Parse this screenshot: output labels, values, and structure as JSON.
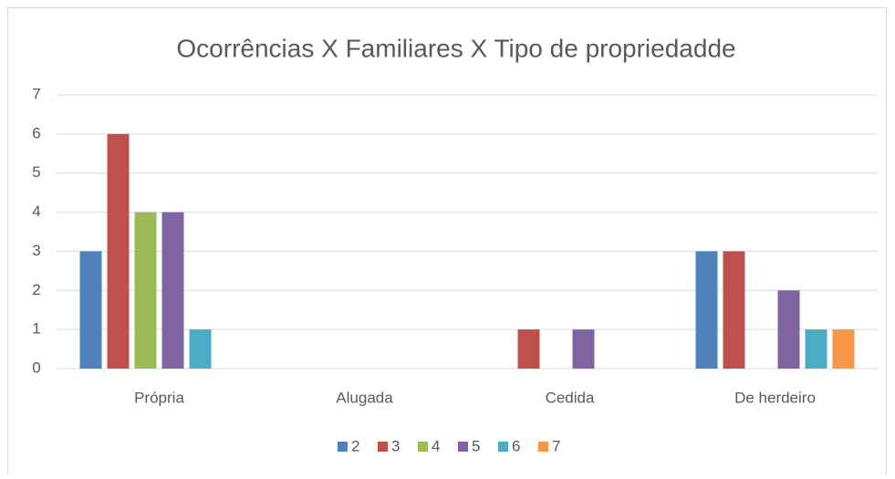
{
  "chart_data": {
    "type": "bar",
    "title": "Ocorrências X Familiares X Tipo de propriedadde",
    "categories": [
      "Própria",
      "Alugada",
      "Cedida",
      "De herdeiro"
    ],
    "series": [
      {
        "name": "2",
        "color": "#4f81bd",
        "values": [
          3,
          0,
          0,
          3
        ]
      },
      {
        "name": "3",
        "color": "#c0504d",
        "values": [
          6,
          0,
          1,
          3
        ]
      },
      {
        "name": "4",
        "color": "#9bbb59",
        "values": [
          4,
          0,
          0,
          0
        ]
      },
      {
        "name": "5",
        "color": "#8064a2",
        "values": [
          4,
          0,
          1,
          2
        ]
      },
      {
        "name": "6",
        "color": "#4bacc6",
        "values": [
          1,
          0,
          0,
          1
        ]
      },
      {
        "name": "7",
        "color": "#f79646",
        "values": [
          0,
          0,
          0,
          1
        ]
      }
    ],
    "ylim": [
      0,
      7
    ],
    "yticks": [
      0,
      1,
      2,
      3,
      4,
      5,
      6,
      7
    ],
    "grid": true,
    "legend": "bottom"
  }
}
